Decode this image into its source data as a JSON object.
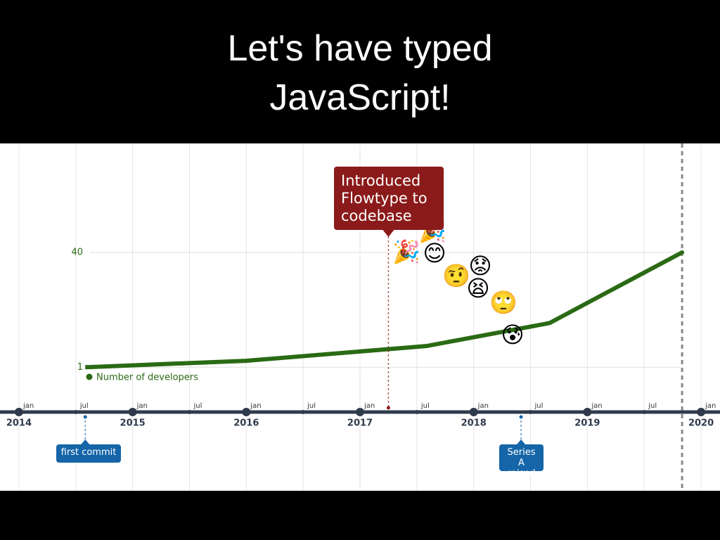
{
  "title": "Let's have typed JavaScript!",
  "chart_data": {
    "type": "line",
    "x": [
      "2014-08",
      "2016-01",
      "2017-08",
      "2018-09",
      "2019-11"
    ],
    "series": [
      {
        "name": "Number of developers",
        "color": "#2a6a14",
        "values": [
          1,
          3.2,
          8.2,
          16,
          40
        ]
      }
    ],
    "xlim": [
      "2013-11",
      "2020-03"
    ],
    "xticks": [
      2014,
      2015,
      2016,
      2017,
      2018,
      2019,
      2020
    ],
    "minor_ticks": [
      {
        "value": "2014-01",
        "label": "jan"
      },
      {
        "value": "2014-07",
        "label": "jul"
      },
      {
        "value": "2015-01",
        "label": "jan"
      },
      {
        "value": "2015-07",
        "label": "jul"
      },
      {
        "value": "2016-01",
        "label": "jan"
      },
      {
        "value": "2016-07",
        "label": "jul"
      },
      {
        "value": "2017-01",
        "label": "jan"
      },
      {
        "value": "2017-07",
        "label": "jul"
      },
      {
        "value": "2018-01",
        "label": "jan"
      },
      {
        "value": "2018-07",
        "label": "jul"
      },
      {
        "value": "2019-01",
        "label": "jan"
      },
      {
        "value": "2019-07",
        "label": "jul"
      },
      {
        "value": "2020-01",
        "label": "jan"
      }
    ],
    "ylim": [
      -8,
      77
    ],
    "yticks": [
      1,
      40
    ],
    "grid": true,
    "current_marker": "2019-11",
    "annotations": [
      {
        "text": "Introduced Flowtype to codebase",
        "x": "2017-04",
        "color": "#8b1a1a"
      },
      {
        "text": "first commit",
        "x": "2014-08",
        "color": "#1565a8"
      },
      {
        "text": "Series A raised",
        "x": "2018-06",
        "color": "#1565a8"
      }
    ],
    "reactions": [
      "🎉",
      "🎉",
      "😊",
      "🤨",
      "😟",
      "😫",
      "🙄",
      "😰"
    ]
  }
}
